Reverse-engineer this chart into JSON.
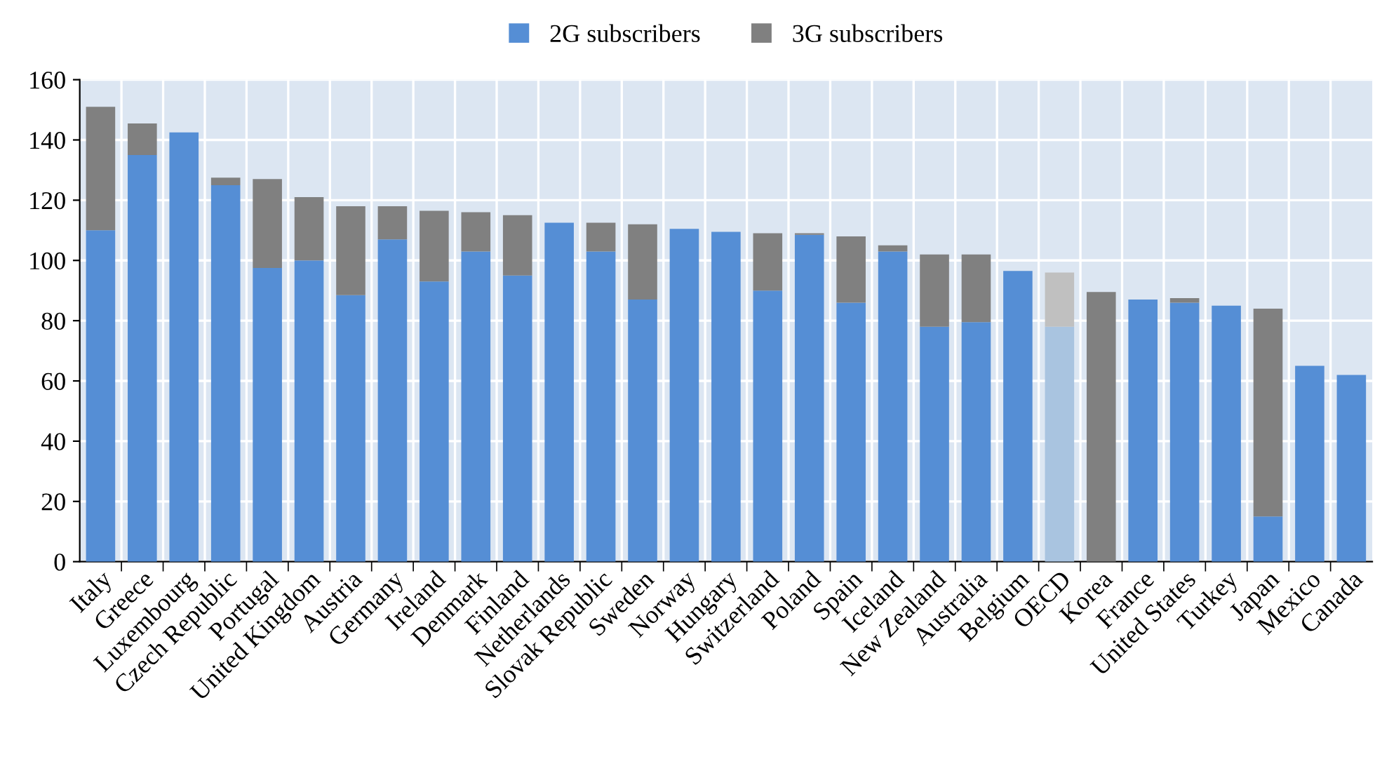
{
  "chart_data": {
    "type": "bar",
    "stacked": true,
    "categories": [
      "Italy",
      "Greece",
      "Luxembourg",
      "Czech Republic",
      "Portugal",
      "United Kingdom",
      "Austria",
      "Germany",
      "Ireland",
      "Denmark",
      "Finland",
      "Netherlands",
      "Slovak Republic",
      "Sweden",
      "Norway",
      "Hungary",
      "Switzerland",
      "Poland",
      "Spain",
      "Iceland",
      "New Zealand",
      "Australia",
      "Belgium",
      "OECD",
      "Korea",
      "France",
      "United States",
      "Turkey",
      "Japan",
      "Mexico",
      "Canada"
    ],
    "series": [
      {
        "name": "2G subscribers",
        "color": "#558ed5",
        "colors": [
          "#558ed5",
          "#558ed5",
          "#558ed5",
          "#558ed5",
          "#558ed5",
          "#558ed5",
          "#558ed5",
          "#558ed5",
          "#558ed5",
          "#558ed5",
          "#558ed5",
          "#558ed5",
          "#558ed5",
          "#558ed5",
          "#558ed5",
          "#558ed5",
          "#558ed5",
          "#558ed5",
          "#558ed5",
          "#558ed5",
          "#558ed5",
          "#558ed5",
          "#558ed5",
          "#a9c4e0",
          "#558ed5",
          "#558ed5",
          "#558ed5",
          "#558ed5",
          "#558ed5",
          "#558ed5",
          "#558ed5"
        ],
        "values": [
          110,
          135,
          142.5,
          125,
          97.5,
          100,
          88.5,
          107,
          93,
          103,
          95,
          112.5,
          103,
          87,
          110.5,
          109.5,
          90,
          108.5,
          86,
          103,
          78,
          79.5,
          96.5,
          78,
          0,
          87,
          86,
          85,
          15,
          65,
          62
        ]
      },
      {
        "name": "3G subscribers",
        "color": "#808080",
        "colors": [
          "#808080",
          "#808080",
          "#808080",
          "#808080",
          "#808080",
          "#808080",
          "#808080",
          "#808080",
          "#808080",
          "#808080",
          "#808080",
          "#808080",
          "#808080",
          "#808080",
          "#808080",
          "#808080",
          "#808080",
          "#808080",
          "#808080",
          "#808080",
          "#808080",
          "#808080",
          "#808080",
          "#c0c0c0",
          "#808080",
          "#808080",
          "#808080",
          "#808080",
          "#808080",
          "#808080",
          "#808080"
        ],
        "values": [
          41,
          10.5,
          0,
          2.5,
          29.5,
          21,
          29.5,
          11,
          23.5,
          13,
          20,
          0,
          9.5,
          25,
          0,
          0,
          19,
          0.5,
          22,
          2,
          24,
          22.5,
          0,
          18,
          89.5,
          0,
          1.5,
          0,
          69,
          0,
          0
        ]
      }
    ],
    "ylim": [
      0,
      160
    ],
    "yticks": [
      0,
      20,
      40,
      60,
      80,
      100,
      120,
      140,
      160
    ],
    "grid": true,
    "legend": "top"
  }
}
